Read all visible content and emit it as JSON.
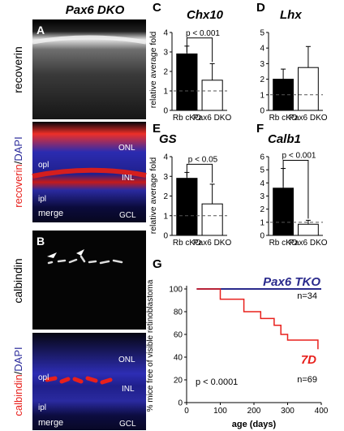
{
  "left": {
    "header": "Pax6 DKO",
    "panel_a": {
      "letter": "A",
      "side_top": "recoverin",
      "side_bottom": {
        "red": "recoverin",
        "slash": "/",
        "blue": "DAPI"
      },
      "layers": {
        "onl": "ONL",
        "opl": "opl",
        "inl": "INL",
        "ipl": "ipl",
        "merge": "merge",
        "gcl": "GCL"
      }
    },
    "panel_b": {
      "letter": "B",
      "side_top": "calbindin",
      "side_bottom": {
        "red": "calbindin",
        "slash": "/",
        "blue": "DAPI"
      },
      "layers": {
        "onl": "ONL",
        "opl": "opl",
        "inl": "INL",
        "ipl": "ipl",
        "merge": "merge",
        "gcl": "GCL"
      }
    }
  },
  "chart_data": [
    {
      "type": "bar",
      "panel": "C",
      "title": "Chx10",
      "ylabel": "relative average fold",
      "ylim": [
        0,
        4
      ],
      "yticks": [
        0,
        1,
        2,
        3,
        4
      ],
      "categories": [
        "Rb cKO",
        "Pax6 DKO"
      ],
      "values": [
        2.9,
        1.55
      ],
      "errors": [
        0.4,
        0.85
      ],
      "fills": [
        "#000000",
        "#ffffff"
      ],
      "reference_line": 1,
      "significance": {
        "label": "p < 0.001"
      }
    },
    {
      "type": "bar",
      "panel": "D",
      "title": "Lhx",
      "ylabel": "",
      "ylim": [
        0,
        5
      ],
      "yticks": [
        0,
        1,
        2,
        3,
        4,
        5
      ],
      "categories": [
        "Rb cKO",
        "Pax6 DKO"
      ],
      "values": [
        2.0,
        2.75
      ],
      "errors": [
        0.65,
        1.35
      ],
      "fills": [
        "#000000",
        "#ffffff"
      ],
      "reference_line": 1,
      "significance": null
    },
    {
      "type": "bar",
      "panel": "E",
      "title": "GS",
      "ylabel": "relative average fold",
      "ylim": [
        0,
        4
      ],
      "yticks": [
        0,
        1,
        2,
        3,
        4
      ],
      "categories": [
        "Rb cKO",
        "Pax6 DKO"
      ],
      "values": [
        2.9,
        1.6
      ],
      "errors": [
        0.3,
        1.0
      ],
      "fills": [
        "#000000",
        "#ffffff"
      ],
      "reference_line": 1,
      "significance": {
        "label": "p < 0.05"
      }
    },
    {
      "type": "bar",
      "panel": "F",
      "title": "Calb1",
      "ylabel": "",
      "ylim": [
        0,
        6
      ],
      "yticks": [
        0,
        1,
        2,
        3,
        4,
        5,
        6
      ],
      "categories": [
        "Rb cKO",
        "Pax6 DKO"
      ],
      "values": [
        3.6,
        0.85
      ],
      "errors": [
        1.5,
        0.3
      ],
      "fills": [
        "#000000",
        "#ffffff"
      ],
      "reference_line": 1,
      "significance": {
        "label": "p < 0.001"
      }
    },
    {
      "type": "line",
      "panel": "G",
      "step": true,
      "ylabel": "% mice free of visible retinoblastoma",
      "xlabel": "age (days)",
      "xlim": [
        0,
        400
      ],
      "ylim": [
        0,
        100
      ],
      "xticks": [
        0,
        100,
        200,
        300,
        400
      ],
      "yticks": [
        0,
        20,
        40,
        60,
        80,
        100
      ],
      "annotation": "p < 0.0001",
      "series": [
        {
          "name": "Pax6 TKO",
          "n_label": "n=34",
          "color": "#2a2a8c",
          "x": [
            30,
            400
          ],
          "y": [
            100,
            100
          ]
        },
        {
          "name": "7D",
          "n_label": "n=69",
          "color": "#e8201c",
          "x": [
            30,
            100,
            100,
            170,
            170,
            220,
            220,
            260,
            260,
            280,
            280,
            300,
            300,
            390,
            390
          ],
          "y": [
            100,
            100,
            91,
            91,
            80,
            80,
            74,
            74,
            68,
            68,
            60,
            60,
            55,
            55,
            47
          ]
        }
      ]
    }
  ]
}
